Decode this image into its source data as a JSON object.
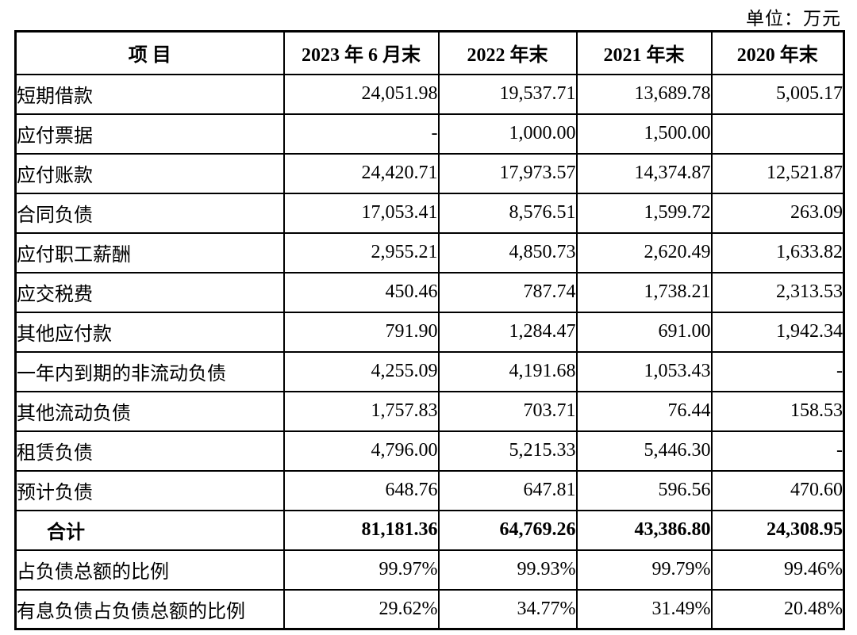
{
  "unit_label": "单位：万元",
  "colors": {
    "border": "#000000",
    "background": "#ffffff",
    "text": "#000000"
  },
  "table": {
    "headers": [
      "项 目",
      "2023 年 6 月末",
      "2022 年末",
      "2021 年末",
      "2020 年末"
    ],
    "rows": [
      {
        "label": "短期借款",
        "values": [
          "24,051.98",
          "19,537.71",
          "13,689.78",
          "5,005.17"
        ],
        "bold": false
      },
      {
        "label": "应付票据",
        "values": [
          "-",
          "1,000.00",
          "1,500.00",
          ""
        ],
        "bold": false
      },
      {
        "label": "应付账款",
        "values": [
          "24,420.71",
          "17,973.57",
          "14,374.87",
          "12,521.87"
        ],
        "bold": false
      },
      {
        "label": "合同负债",
        "values": [
          "17,053.41",
          "8,576.51",
          "1,599.72",
          "263.09"
        ],
        "bold": false
      },
      {
        "label": "应付职工薪酬",
        "values": [
          "2,955.21",
          "4,850.73",
          "2,620.49",
          "1,633.82"
        ],
        "bold": false
      },
      {
        "label": "应交税费",
        "values": [
          "450.46",
          "787.74",
          "1,738.21",
          "2,313.53"
        ],
        "bold": false
      },
      {
        "label": "其他应付款",
        "values": [
          "791.90",
          "1,284.47",
          "691.00",
          "1,942.34"
        ],
        "bold": false
      },
      {
        "label": "一年内到期的非流动负债",
        "values": [
          "4,255.09",
          "4,191.68",
          "1,053.43",
          "-"
        ],
        "bold": false
      },
      {
        "label": "其他流动负债",
        "values": [
          "1,757.83",
          "703.71",
          "76.44",
          "158.53"
        ],
        "bold": false
      },
      {
        "label": "租赁负债",
        "values": [
          "4,796.00",
          "5,215.33",
          "5,446.30",
          "-"
        ],
        "bold": false
      },
      {
        "label": "预计负债",
        "values": [
          "648.76",
          "647.81",
          "596.56",
          "470.60"
        ],
        "bold": false
      },
      {
        "label": "合计",
        "values": [
          "81,181.36",
          "64,769.26",
          "43,386.80",
          "24,308.95"
        ],
        "bold": true
      },
      {
        "label": "占负债总额的比例",
        "values": [
          "99.97%",
          "99.93%",
          "99.79%",
          "99.46%"
        ],
        "bold": false
      },
      {
        "label": "有息负债占负债总额的比例",
        "values": [
          "29.62%",
          "34.77%",
          "31.49%",
          "20.48%"
        ],
        "bold": false
      }
    ]
  }
}
